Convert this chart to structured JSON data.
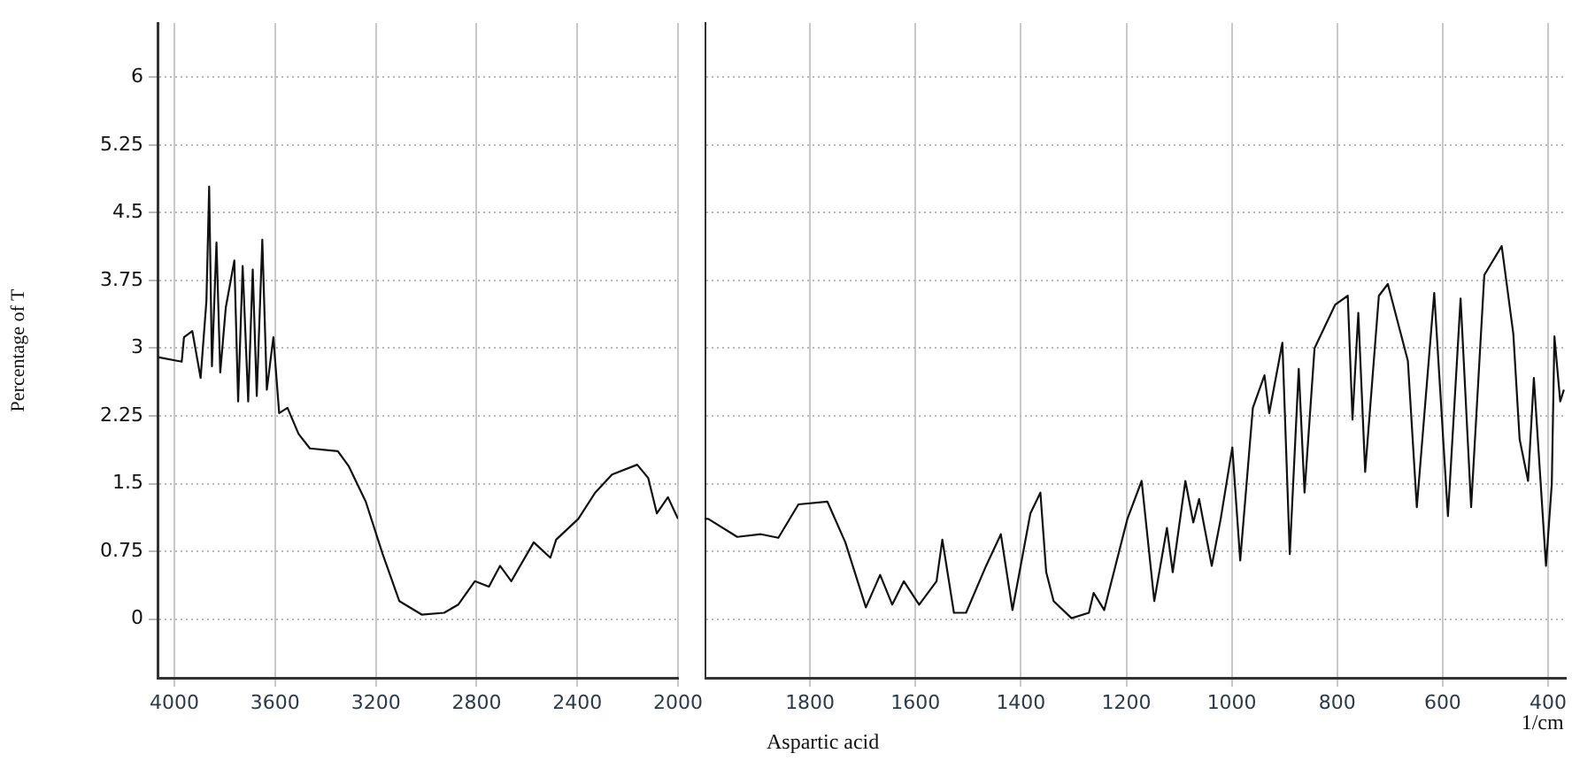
{
  "chart_data": [
    {
      "type": "line",
      "ylabel": "Percentage of T",
      "x": [
        4065,
        3971,
        3962,
        3929,
        3896,
        3873,
        3862,
        3851,
        3833,
        3818,
        3796,
        3762,
        3747,
        3729,
        3707,
        3689,
        3673,
        3651,
        3633,
        3607,
        3584,
        3551,
        3507,
        3462,
        3351,
        3307,
        3240,
        3173,
        3107,
        3018,
        2929,
        2873,
        2807,
        2751,
        2707,
        2662,
        2573,
        2507,
        2484,
        2396,
        2329,
        2262,
        2162,
        2118,
        2084,
        2040,
        2000
      ],
      "series": [
        {
          "color": "#111111",
          "values": [
            2.9,
            2.85,
            3.12,
            3.19,
            2.67,
            3.52,
            4.79,
            2.8,
            4.17,
            2.73,
            3.45,
            3.97,
            2.41,
            3.91,
            2.41,
            3.87,
            2.47,
            4.2,
            2.54,
            3.12,
            2.28,
            2.34,
            2.05,
            1.89,
            1.86,
            1.69,
            1.3,
            0.72,
            0.2,
            0.05,
            0.07,
            0.16,
            0.42,
            0.36,
            0.59,
            0.42,
            0.85,
            0.68,
            0.88,
            1.11,
            1.4,
            1.6,
            1.71,
            1.56,
            1.17,
            1.35,
            1.11
          ]
        }
      ],
      "xlim": [
        4067,
        2000
      ],
      "xticks": [
        4000,
        3600,
        3200,
        2800,
        2400,
        2000
      ],
      "ylim": [
        -0.65,
        6.6
      ],
      "yticks": [
        0,
        0.75,
        1.5,
        2.25,
        3,
        3.75,
        4.5,
        5.25,
        6
      ],
      "grid": true
    },
    {
      "type": "line",
      "xlabel": "1/cm",
      "annotations": [
        "Aspartic acid"
      ],
      "tick_labels": "x",
      "x": [
        2000,
        1993,
        1938,
        1893,
        1860,
        1822,
        1767,
        1733,
        1694,
        1667,
        1644,
        1622,
        1593,
        1560,
        1549,
        1527,
        1504,
        1466,
        1438,
        1416,
        1382,
        1363,
        1352,
        1338,
        1304,
        1271,
        1262,
        1242,
        1198,
        1171,
        1147,
        1123,
        1112,
        1088,
        1073,
        1062,
        1038,
        1021,
        999,
        984,
        960,
        938,
        929,
        904,
        890,
        873,
        862,
        843,
        804,
        780,
        771,
        760,
        747,
        721,
        704,
        666,
        649,
        616,
        590,
        566,
        546,
        521,
        488,
        466,
        454,
        438,
        427,
        404,
        393,
        388,
        377,
        370
      ],
      "series": [
        {
          "color": "#111111",
          "values": [
            1.11,
            1.11,
            0.91,
            0.94,
            0.9,
            1.27,
            1.3,
            0.85,
            0.13,
            0.49,
            0.16,
            0.42,
            0.16,
            0.42,
            0.88,
            0.07,
            0.07,
            0.59,
            0.94,
            0.1,
            1.17,
            1.4,
            0.52,
            0.2,
            0.01,
            0.07,
            0.29,
            0.1,
            1.11,
            1.53,
            0.2,
            1.01,
            0.52,
            1.53,
            1.07,
            1.33,
            0.59,
            1.11,
            1.9,
            0.65,
            2.34,
            2.7,
            2.28,
            3.06,
            0.72,
            2.77,
            1.4,
            3.0,
            3.48,
            3.58,
            2.21,
            3.39,
            1.63,
            3.58,
            3.71,
            2.86,
            1.24,
            3.61,
            1.14,
            3.55,
            1.24,
            3.81,
            4.13,
            3.16,
            1.99,
            1.53,
            2.67,
            0.59,
            1.5,
            3.13,
            2.41,
            2.54
          ]
        }
      ],
      "xlim": [
        2000,
        367
      ],
      "xticks": [
        1800,
        1600,
        1400,
        1200,
        1000,
        800,
        600,
        400
      ],
      "ylim": [
        -0.65,
        6.6
      ],
      "yticks": [
        0,
        0.75,
        1.5,
        2.25,
        3,
        3.75,
        4.5,
        5.25,
        6
      ],
      "grid": true
    }
  ]
}
